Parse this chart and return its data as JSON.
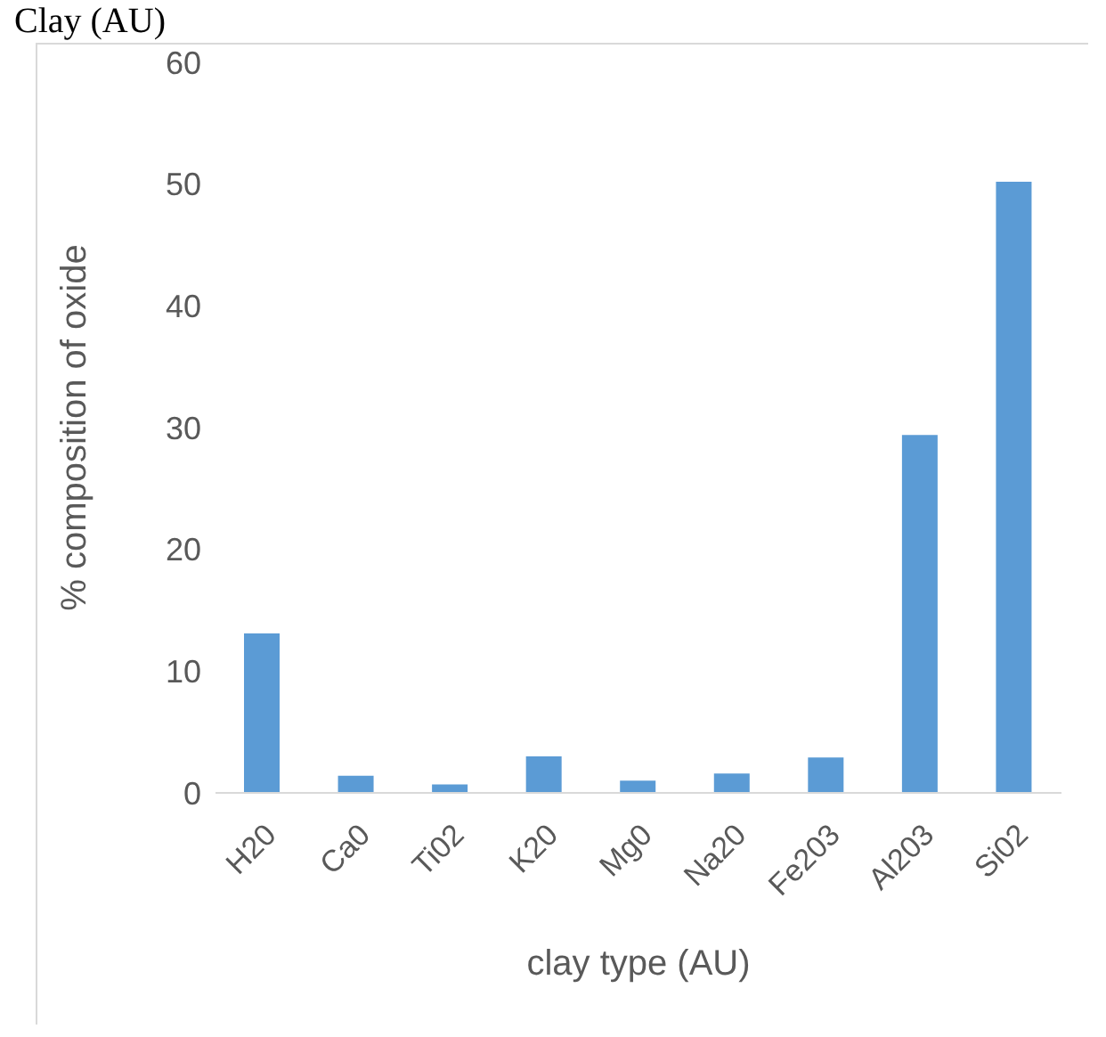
{
  "chart_data": {
    "type": "bar",
    "title": "Clay (AU)",
    "xlabel": "clay type (AU)",
    "ylabel": "% composition of oxide",
    "categories": [
      "H20",
      "Ca0",
      "Ti02",
      "K20",
      "Mg0",
      "Na20",
      "Fe203",
      "Al203",
      "Si02"
    ],
    "values": [
      13.1,
      1.4,
      0.7,
      3.0,
      1.0,
      1.6,
      2.9,
      29.4,
      50.2
    ],
    "color": "#5b9bd5",
    "ylim": [
      0,
      60
    ],
    "yticks": [
      0,
      10,
      20,
      30,
      40,
      50,
      60
    ],
    "grid": false
  }
}
